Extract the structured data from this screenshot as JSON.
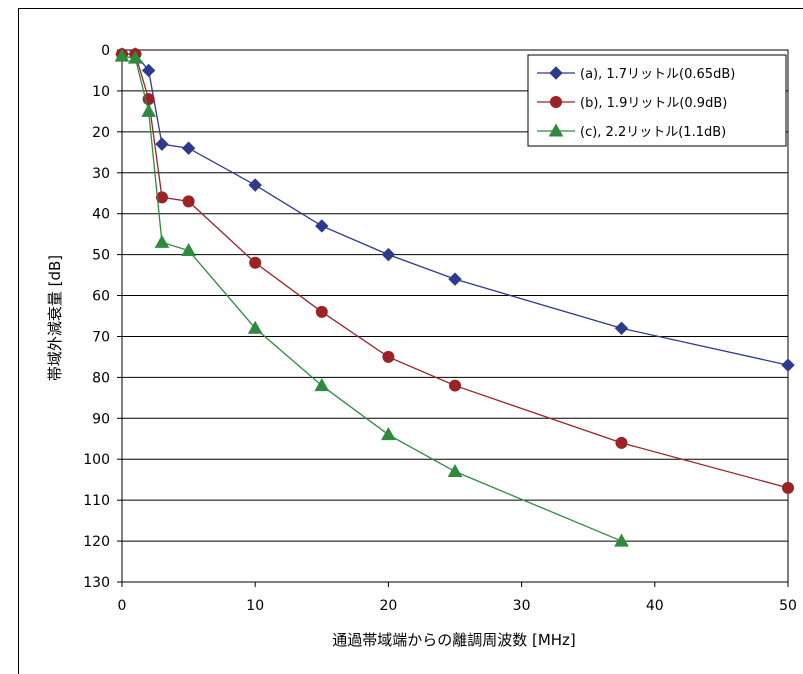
{
  "chart_data": {
    "type": "line",
    "xlabel": "通過帯域端からの離調周波数 [MHz]",
    "ylabel": "帯域外減衰量 [dB]",
    "xlim": [
      0,
      50
    ],
    "ylim": [
      0,
      130
    ],
    "y_inverted": true,
    "x_ticks": [
      0,
      10,
      20,
      30,
      40,
      50
    ],
    "y_ticks": [
      0,
      10,
      20,
      30,
      40,
      50,
      60,
      70,
      80,
      90,
      100,
      110,
      120,
      130
    ],
    "grid": "horizontal",
    "legend_position": "top-right",
    "series": [
      {
        "name": "(a), 1.7リットル(0.65dB)",
        "color": "#2E3A8C",
        "marker": "diamond",
        "x": [
          0,
          1,
          2,
          3,
          5,
          10,
          15,
          20,
          25,
          37.5,
          50
        ],
        "y": [
          1,
          1,
          5,
          23,
          24,
          33,
          43,
          50,
          56,
          68,
          77
        ]
      },
      {
        "name": "(b), 1.9リットル(0.9dB)",
        "color": "#9B2226",
        "marker": "circle",
        "x": [
          0,
          1,
          2,
          3,
          5,
          10,
          15,
          20,
          25,
          37.5,
          50
        ],
        "y": [
          1,
          1,
          12,
          36,
          37,
          52,
          64,
          75,
          82,
          96,
          107
        ]
      },
      {
        "name": "(c), 2.2リットル(1.1dB)",
        "color": "#2E8B3E",
        "marker": "triangle",
        "x": [
          0,
          1,
          2,
          3,
          5,
          10,
          15,
          20,
          25,
          37.5
        ],
        "y": [
          1.5,
          2,
          15,
          47,
          49,
          68,
          82,
          94,
          103,
          120
        ]
      }
    ]
  }
}
